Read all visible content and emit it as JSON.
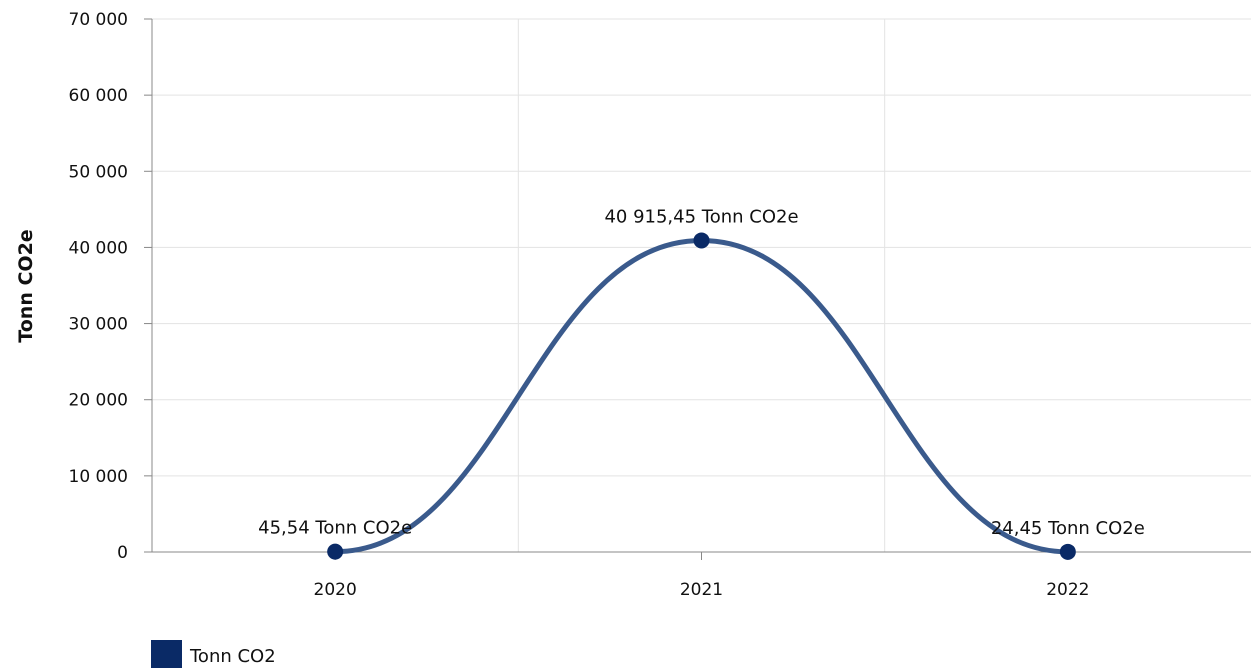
{
  "chart_data": {
    "type": "line",
    "smooth": true,
    "ylabel": "Tonn CO2e",
    "xlabel": "",
    "ylim": [
      0,
      70000
    ],
    "yticks": [
      0,
      10000,
      20000,
      30000,
      40000,
      50000,
      60000,
      70000
    ],
    "ytick_labels": [
      "0",
      "10 000",
      "20 000",
      "30 000",
      "40 000",
      "50 000",
      "60 000",
      "70 000"
    ],
    "categories": [
      "2020",
      "2021",
      "2022"
    ],
    "series": [
      {
        "name": "Tonn CO2",
        "values": [
          45.54,
          40915.45,
          24.45
        ],
        "data_labels": [
          "45,54 Tonn CO2e",
          "40 915,45 Tonn CO2e",
          "24,45 Tonn CO2e"
        ]
      }
    ],
    "grid": true,
    "legend": "bottom-left",
    "colors": {
      "line": "#3a5a8c",
      "marker": "#0a2a66",
      "legend_swatch": "#0a2a66",
      "grid": "#e3e3e3",
      "axis": "#888888"
    }
  }
}
